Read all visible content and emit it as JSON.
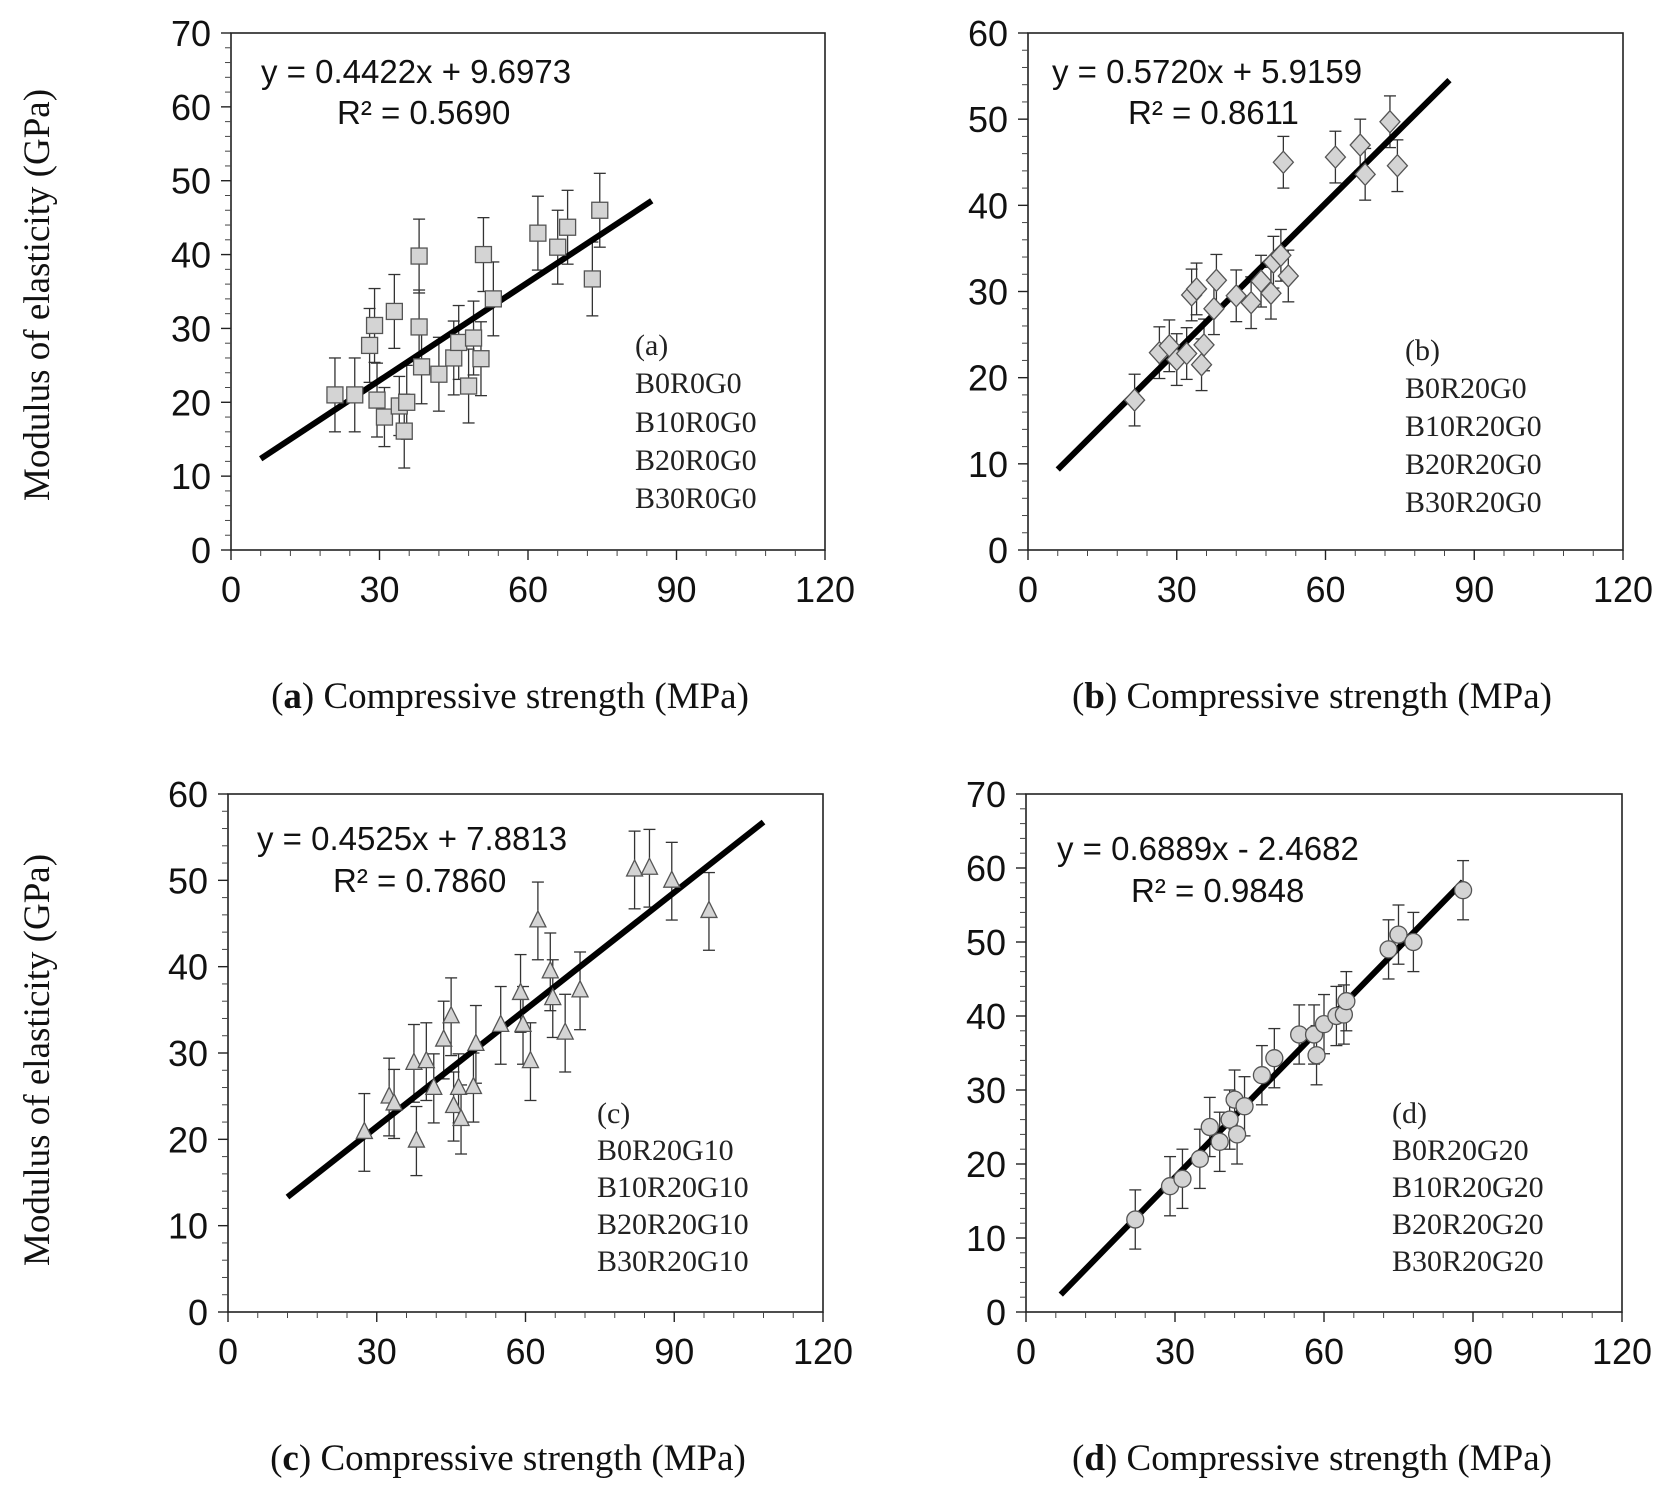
{
  "figure": {
    "y_axis_label": "Modulus of elasticity (GPa)"
  },
  "chart_data": [
    {
      "type": "scatter",
      "panel": "a",
      "caption_letter": "a",
      "caption_text": "Compressive strength (MPa)",
      "xlabel": "Compressive strength (MPa)",
      "ylabel": "Modulus of elasticity (GPa)",
      "xlim": [
        0,
        120
      ],
      "ylim": [
        0,
        70
      ],
      "xticks": [
        0,
        30,
        60,
        90,
        120
      ],
      "yticks": [
        0,
        10,
        20,
        30,
        40,
        50,
        60,
        70
      ],
      "marker": "square",
      "equation": "y = 0.4422x + 9.6973",
      "r2": "R² = 0.5690",
      "fit": {
        "slope": 0.4422,
        "intercept": 9.6973,
        "x_range": [
          6,
          85
        ]
      },
      "legend_title": "(a)",
      "legend_entries": [
        "B0R0G0",
        "B10R0G0",
        "B20R0G0",
        "B30R0G0"
      ],
      "points": [
        {
          "x": 21,
          "y": 21,
          "err": 5
        },
        {
          "x": 25,
          "y": 21,
          "err": 5
        },
        {
          "x": 28,
          "y": 27.7,
          "err": 5
        },
        {
          "x": 29,
          "y": 30.4,
          "err": 5
        },
        {
          "x": 29.5,
          "y": 20.3,
          "err": 5
        },
        {
          "x": 31,
          "y": 18,
          "err": 4
        },
        {
          "x": 33,
          "y": 32.3,
          "err": 5
        },
        {
          "x": 34,
          "y": 19.5,
          "err": 4
        },
        {
          "x": 35,
          "y": 16.1,
          "err": 5
        },
        {
          "x": 35.5,
          "y": 20,
          "err": 5
        },
        {
          "x": 38,
          "y": 39.8,
          "err": 5
        },
        {
          "x": 38,
          "y": 30.2,
          "err": 5
        },
        {
          "x": 38.5,
          "y": 24.8,
          "err": 5
        },
        {
          "x": 42,
          "y": 23.8,
          "err": 5
        },
        {
          "x": 45,
          "y": 26,
          "err": 5
        },
        {
          "x": 46,
          "y": 28.1,
          "err": 5
        },
        {
          "x": 48,
          "y": 22.2,
          "err": 5
        },
        {
          "x": 49,
          "y": 28.7,
          "err": 5
        },
        {
          "x": 50.5,
          "y": 25.9,
          "err": 5
        },
        {
          "x": 51,
          "y": 40,
          "err": 5
        },
        {
          "x": 53,
          "y": 34,
          "err": 5
        },
        {
          "x": 62,
          "y": 42.9,
          "err": 5
        },
        {
          "x": 66,
          "y": 41,
          "err": 5
        },
        {
          "x": 68,
          "y": 43.7,
          "err": 5
        },
        {
          "x": 73,
          "y": 36.7,
          "err": 5
        },
        {
          "x": 74.5,
          "y": 46,
          "err": 5
        }
      ]
    },
    {
      "type": "scatter",
      "panel": "b",
      "caption_letter": "b",
      "caption_text": "Compressive strength (MPa)",
      "xlabel": "Compressive strength (MPa)",
      "ylabel": "Modulus of elasticity (GPa)",
      "xlim": [
        0,
        120
      ],
      "ylim": [
        0,
        60
      ],
      "xticks": [
        0,
        30,
        60,
        90,
        120
      ],
      "yticks": [
        0,
        10,
        20,
        30,
        40,
        50,
        60
      ],
      "marker": "diamond",
      "equation": "y = 0.5720x + 5.9159",
      "r2": "R² = 0.8611",
      "fit": {
        "slope": 0.572,
        "intercept": 5.9159,
        "x_range": [
          6,
          85
        ]
      },
      "legend_title": "(b)",
      "legend_entries": [
        "B0R20G0",
        "B10R20G0",
        "B20R20G0",
        "B30R20G0"
      ],
      "points": [
        {
          "x": 21.5,
          "y": 17.4,
          "err": 3
        },
        {
          "x": 26.5,
          "y": 22.9,
          "err": 3
        },
        {
          "x": 28.5,
          "y": 23.7,
          "err": 3
        },
        {
          "x": 30,
          "y": 22.1,
          "err": 3
        },
        {
          "x": 32,
          "y": 22.8,
          "err": 3
        },
        {
          "x": 33,
          "y": 29.6,
          "err": 3
        },
        {
          "x": 34,
          "y": 30.3,
          "err": 3
        },
        {
          "x": 35,
          "y": 21.5,
          "err": 3
        },
        {
          "x": 35.5,
          "y": 23.8,
          "err": 3
        },
        {
          "x": 37.5,
          "y": 28,
          "err": 3
        },
        {
          "x": 38,
          "y": 31.3,
          "err": 3
        },
        {
          "x": 42,
          "y": 29.5,
          "err": 3
        },
        {
          "x": 45,
          "y": 28.7,
          "err": 3
        },
        {
          "x": 47,
          "y": 31.2,
          "err": 3
        },
        {
          "x": 49,
          "y": 29.8,
          "err": 3
        },
        {
          "x": 49.5,
          "y": 33.4,
          "err": 3
        },
        {
          "x": 51,
          "y": 34.2,
          "err": 3
        },
        {
          "x": 51.5,
          "y": 45,
          "err": 3
        },
        {
          "x": 52.5,
          "y": 31.8,
          "err": 3
        },
        {
          "x": 62,
          "y": 45.6,
          "err": 3
        },
        {
          "x": 67,
          "y": 47,
          "err": 3
        },
        {
          "x": 68,
          "y": 43.6,
          "err": 3
        },
        {
          "x": 73,
          "y": 49.7,
          "err": 3
        },
        {
          "x": 74.5,
          "y": 44.6,
          "err": 3
        }
      ]
    },
    {
      "type": "scatter",
      "panel": "c",
      "caption_letter": "c",
      "caption_text": "Compressive strength (MPa)",
      "xlabel": "Compressive strength (MPa)",
      "ylabel": "Modulus of elasticity (GPa)",
      "xlim": [
        0,
        120
      ],
      "ylim": [
        0,
        60
      ],
      "xticks": [
        0,
        30,
        60,
        90,
        120
      ],
      "yticks": [
        0,
        10,
        20,
        30,
        40,
        50,
        60
      ],
      "marker": "triangle",
      "equation": "y = 0.4525x + 7.8813",
      "r2": "R² = 0.7860",
      "fit": {
        "slope": 0.4525,
        "intercept": 7.8813,
        "x_range": [
          12,
          108
        ]
      },
      "legend_title": "(c)",
      "legend_entries": [
        "B0R20G10",
        "B10R20G10",
        "B20R20G10",
        "B30R20G10"
      ],
      "points": [
        {
          "x": 27.5,
          "y": 20.8,
          "err": 4.5
        },
        {
          "x": 32.5,
          "y": 24.9,
          "err": 4.5
        },
        {
          "x": 33.5,
          "y": 24.1,
          "err": 4
        },
        {
          "x": 37.5,
          "y": 28.8,
          "err": 4.5
        },
        {
          "x": 38,
          "y": 19.8,
          "err": 4
        },
        {
          "x": 40,
          "y": 29,
          "err": 4.5
        },
        {
          "x": 41.5,
          "y": 25.9,
          "err": 4
        },
        {
          "x": 43.5,
          "y": 31.5,
          "err": 4.5
        },
        {
          "x": 45,
          "y": 34.2,
          "err": 4.5
        },
        {
          "x": 45.5,
          "y": 23.8,
          "err": 4
        },
        {
          "x": 46.5,
          "y": 25.9,
          "err": 4
        },
        {
          "x": 47,
          "y": 22.3,
          "err": 4
        },
        {
          "x": 49.5,
          "y": 26,
          "err": 4
        },
        {
          "x": 50,
          "y": 31,
          "err": 4.5
        },
        {
          "x": 55,
          "y": 33.2,
          "err": 4.5
        },
        {
          "x": 59,
          "y": 36.9,
          "err": 4.5
        },
        {
          "x": 59.5,
          "y": 33.2,
          "err": 4.5
        },
        {
          "x": 61,
          "y": 29,
          "err": 4.5
        },
        {
          "x": 62.5,
          "y": 45.3,
          "err": 4.5
        },
        {
          "x": 65,
          "y": 39.4,
          "err": 4.5
        },
        {
          "x": 65.5,
          "y": 36.3,
          "err": 4.5
        },
        {
          "x": 68,
          "y": 32.3,
          "err": 4.5
        },
        {
          "x": 71,
          "y": 37.2,
          "err": 4.5
        },
        {
          "x": 82,
          "y": 51.2,
          "err": 4.5
        },
        {
          "x": 85,
          "y": 51.4,
          "err": 4.5
        },
        {
          "x": 89.5,
          "y": 49.9,
          "err": 4.5
        },
        {
          "x": 97,
          "y": 46.4,
          "err": 4.5
        }
      ]
    },
    {
      "type": "scatter",
      "panel": "d",
      "caption_letter": "d",
      "caption_text": "Compressive strength (MPa)",
      "xlabel": "Compressive strength (MPa)",
      "ylabel": "Modulus of elasticity (GPa)",
      "xlim": [
        0,
        120
      ],
      "ylim": [
        0,
        70
      ],
      "xticks": [
        0,
        30,
        60,
        90,
        120
      ],
      "yticks": [
        0,
        10,
        20,
        30,
        40,
        50,
        60,
        70
      ],
      "marker": "circle",
      "equation": "y = 0.6889x - 2.4682",
      "r2": "R² = 0.9848",
      "fit": {
        "slope": 0.6889,
        "intercept": -2.4682,
        "x_range": [
          7,
          88
        ]
      },
      "legend_title": "(d)",
      "legend_entries": [
        "B0R20G20",
        "B10R20G20",
        "B20R20G20",
        "B30R20G20"
      ],
      "points": [
        {
          "x": 22,
          "y": 12.5,
          "err": 4
        },
        {
          "x": 29,
          "y": 17,
          "err": 4
        },
        {
          "x": 31.5,
          "y": 18,
          "err": 4
        },
        {
          "x": 35,
          "y": 20.7,
          "err": 4
        },
        {
          "x": 37,
          "y": 25,
          "err": 4
        },
        {
          "x": 39,
          "y": 23,
          "err": 4
        },
        {
          "x": 41,
          "y": 26,
          "err": 4
        },
        {
          "x": 42,
          "y": 28.7,
          "err": 4
        },
        {
          "x": 42.5,
          "y": 24,
          "err": 4
        },
        {
          "x": 44,
          "y": 27.8,
          "err": 4
        },
        {
          "x": 47.5,
          "y": 32,
          "err": 4
        },
        {
          "x": 50,
          "y": 34.3,
          "err": 4
        },
        {
          "x": 55,
          "y": 37.5,
          "err": 4
        },
        {
          "x": 58,
          "y": 37.5,
          "err": 4
        },
        {
          "x": 58.5,
          "y": 34.7,
          "err": 4
        },
        {
          "x": 60,
          "y": 38.9,
          "err": 4
        },
        {
          "x": 62.5,
          "y": 40,
          "err": 4
        },
        {
          "x": 64,
          "y": 40.2,
          "err": 4
        },
        {
          "x": 64.5,
          "y": 42,
          "err": 4
        },
        {
          "x": 73,
          "y": 49,
          "err": 4
        },
        {
          "x": 75,
          "y": 51,
          "err": 4
        },
        {
          "x": 78,
          "y": 50,
          "err": 4
        },
        {
          "x": 88,
          "y": 57,
          "err": 4
        }
      ]
    }
  ]
}
